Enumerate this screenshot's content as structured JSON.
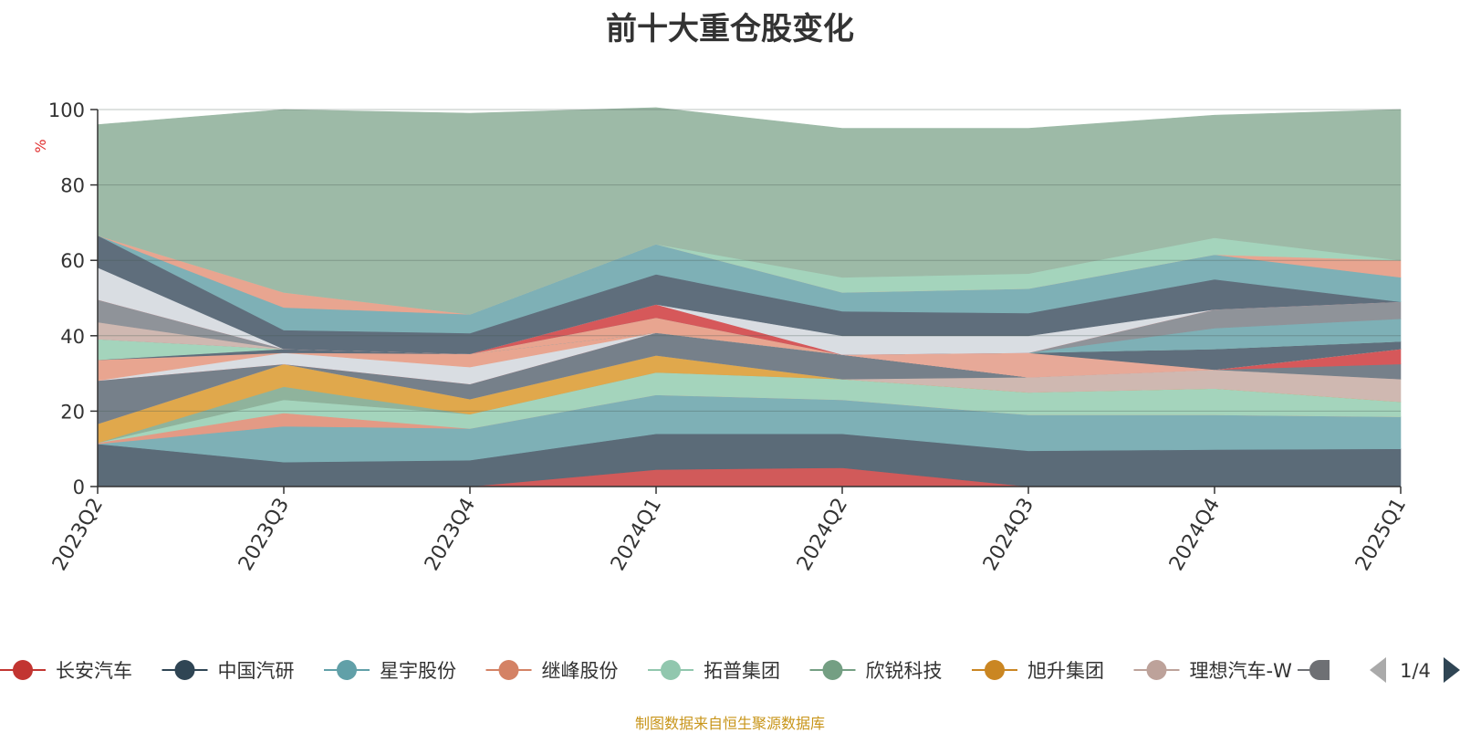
{
  "title": "前十大重仓股变化",
  "source_note": "制图数据来自恒生聚源数据库",
  "legend_pager": "1/4",
  "chart_data": {
    "type": "area",
    "stacked": true,
    "ylabel": "%",
    "ylim": [
      0,
      100
    ],
    "yticks": [
      0,
      20,
      40,
      60,
      80,
      100
    ],
    "categories": [
      "2023Q2",
      "2023Q3",
      "2023Q4",
      "2024Q1",
      "2024Q2",
      "2024Q3",
      "2024Q4",
      "2025Q1"
    ],
    "grid": true,
    "legend": "bottom",
    "series": [
      {
        "name": "长安汽车",
        "color": "#d15a5a",
        "legend_color": "#c23531",
        "values": [
          0,
          0,
          0,
          4.5,
          5,
          0,
          0,
          0
        ]
      },
      {
        "name": "中国汽研",
        "color": "#5b6b78",
        "legend_color": "#2f4554",
        "values": [
          11.3,
          6.5,
          7,
          9.5,
          9,
          9.5,
          9.8,
          10
        ]
      },
      {
        "name": "星宇股份",
        "color": "#7eb0b6",
        "legend_color": "#61a0a8",
        "values": [
          0,
          9.5,
          8.4,
          10.3,
          9,
          9.5,
          9.2,
          8.5
        ]
      },
      {
        "name": "继峰股份",
        "color": "#e39a85",
        "legend_color": "#d48265",
        "values": [
          0.3,
          3.5,
          0,
          0,
          0,
          0,
          0,
          0
        ]
      },
      {
        "name": "拓普集团",
        "color": "#a4d4bc",
        "legend_color": "#91c7ae",
        "values": [
          0,
          3.5,
          3.8,
          6,
          5.5,
          6,
          7,
          4
        ]
      },
      {
        "name": "欣锐科技",
        "color": "#8fb39c",
        "legend_color": "#749f83",
        "values": [
          0,
          3.5,
          0,
          0,
          0,
          0,
          0,
          0
        ]
      },
      {
        "name": "旭升集团",
        "color": "#e0a84c",
        "legend_color": "#ca8622",
        "values": [
          5,
          6,
          4,
          4.5,
          0,
          0,
          0,
          0
        ]
      },
      {
        "name": "理想汽车-W",
        "color": "#cfb8b1",
        "legend_color": "#bda29a",
        "values": [
          0,
          0,
          0,
          0,
          0,
          4,
          5,
          6
        ]
      },
      {
        "name": "",
        "color": "#76808a",
        "legend_color": "#6e7074",
        "values": [
          11.5,
          0,
          4,
          6,
          6.5,
          0,
          0,
          4
        ]
      },
      {
        "name": "",
        "color": "#d6585a",
        "legend_color": "#d6585a",
        "values": [
          0,
          0,
          0,
          0,
          0,
          0,
          0,
          4
        ]
      },
      {
        "name": "",
        "color": "#d9dde2",
        "legend_color": "#d9dde2",
        "values": [
          0,
          3,
          4.5,
          0,
          0,
          0,
          0,
          0
        ]
      },
      {
        "name": "",
        "color": "#e8a590",
        "legend_color": "#e8a590",
        "values": [
          5.5,
          0,
          3.5,
          0,
          0,
          0,
          0,
          0
        ]
      },
      {
        "name": "",
        "color": "#e7a998",
        "legend_color": "#e7a998",
        "values": [
          0,
          0,
          0,
          0,
          0,
          6.5,
          0,
          0
        ]
      },
      {
        "name": "",
        "color": "#5f6e7c",
        "legend_color": "#5f6e7c",
        "values": [
          0,
          1,
          0,
          0,
          0,
          0,
          5.5,
          2
        ]
      },
      {
        "name": "",
        "color": "#a4d4bc",
        "legend_color": "#a4d4bc",
        "values": [
          5.5,
          0,
          0,
          0,
          0,
          0,
          0,
          0
        ]
      },
      {
        "name": "",
        "color": "#7eb0b6",
        "legend_color": "#7eb0b6",
        "values": [
          0,
          0,
          0,
          0,
          0,
          0,
          5.5,
          6
        ]
      },
      {
        "name": "",
        "color": "#8f9399",
        "legend_color": "#8f9399",
        "values": [
          0,
          0,
          0,
          0,
          0,
          0,
          5,
          4.5
        ]
      },
      {
        "name": "",
        "color": "#e8a590",
        "legend_color": "#e8a590",
        "values": [
          0,
          0,
          0,
          4,
          0,
          0,
          0,
          0
        ]
      },
      {
        "name": "",
        "color": "#cfb8b1",
        "legend_color": "#cfb8b1",
        "values": [
          4.5,
          0,
          0,
          0,
          0,
          0,
          0,
          0
        ]
      },
      {
        "name": "",
        "color": "#8f9399",
        "legend_color": "#8f9399",
        "values": [
          6,
          0,
          0,
          0,
          0,
          0,
          0,
          0
        ]
      },
      {
        "name": "",
        "color": "#d6585a",
        "legend_color": "#d6585a",
        "values": [
          0,
          0,
          0,
          3.5,
          0,
          0,
          0,
          0
        ]
      },
      {
        "name": "",
        "color": "#d9dde2",
        "legend_color": "#d9dde2",
        "values": [
          8.5,
          0,
          0,
          0,
          5,
          4.5,
          0,
          0
        ]
      },
      {
        "name": "",
        "color": "#5f6e7c",
        "legend_color": "#5f6e7c",
        "values": [
          8.5,
          5,
          5.5,
          8,
          6.5,
          6,
          8,
          0
        ]
      },
      {
        "name": "",
        "color": "#7eb0b6",
        "legend_color": "#7eb0b6",
        "values": [
          0,
          6,
          5,
          8,
          5,
          6.5,
          6.5,
          6.5
        ]
      },
      {
        "name": "",
        "color": "#e8a590",
        "legend_color": "#e8a590",
        "values": [
          0,
          4,
          0,
          0,
          0,
          0,
          0,
          4.5
        ]
      },
      {
        "name": "",
        "color": "#a4d4bc",
        "legend_color": "#a4d4bc",
        "values": [
          0,
          0,
          0,
          0,
          4,
          4,
          4.5,
          0
        ]
      },
      {
        "name": "",
        "color": "#9dbaa7",
        "legend_color": "#9dbaa7",
        "values": [
          29.4,
          48.5,
          53.3,
          36.2,
          39.5,
          38.5,
          32.5,
          40
        ]
      }
    ]
  }
}
